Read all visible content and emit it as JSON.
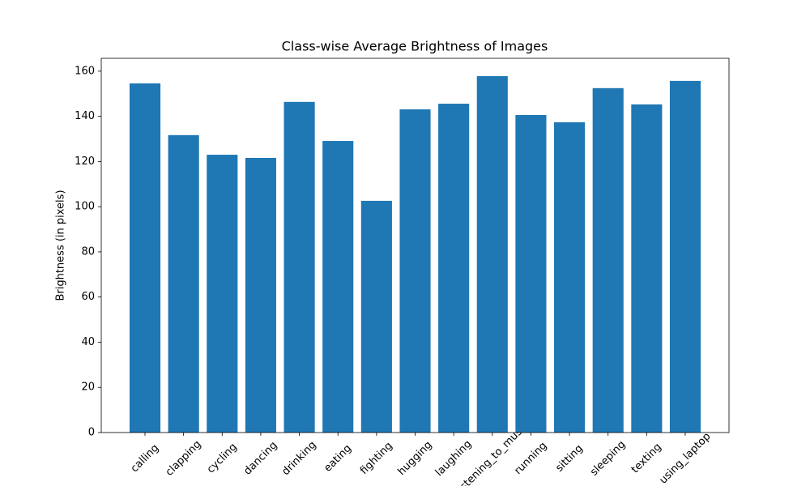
{
  "chart_data": {
    "type": "bar",
    "title": "Class-wise Average Brightness of Images",
    "y_label": "Brightness (in pixels)",
    "categories": [
      "calling",
      "clapping",
      "cycling",
      "dancing",
      "drinking",
      "eating",
      "fighting",
      "hugging",
      "laughing",
      "listening_to_music",
      "running",
      "sitting",
      "sleeping",
      "texting",
      "using_laptop"
    ],
    "values": [
      154.6,
      131.7,
      123.0,
      121.6,
      146.4,
      129.1,
      102.6,
      143.1,
      145.6,
      157.8,
      140.6,
      137.4,
      152.5,
      145.3,
      155.7
    ],
    "color": "#1f77b4",
    "ylim": [
      0,
      165.7
    ],
    "yticks": [
      0,
      20,
      40,
      60,
      80,
      100,
      120,
      140,
      160
    ],
    "grid": false
  }
}
